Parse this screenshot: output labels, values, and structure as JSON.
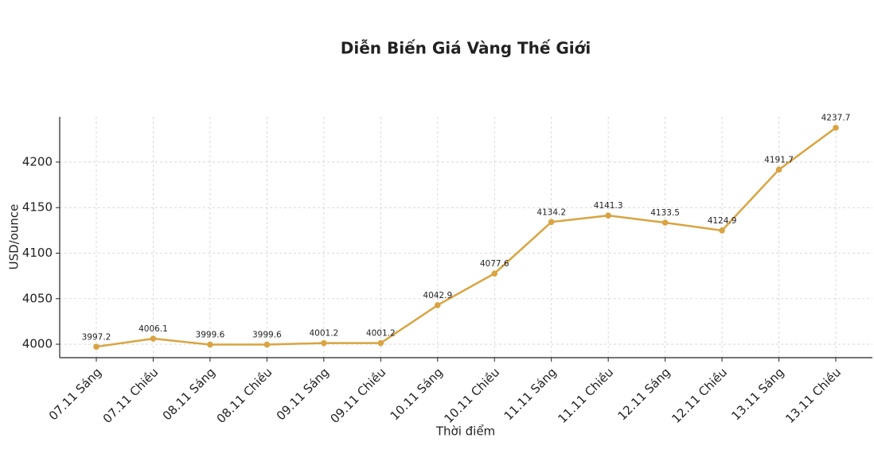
{
  "chart_data": {
    "type": "line",
    "title": "Diễn Biến Giá Vàng Thế Giới",
    "x_label": "Thời điểm",
    "y_label": "USD/ounce",
    "categories": [
      "07.11 Sáng",
      "07.11 Chiều",
      "08.11 Sáng",
      "08.11 Chiều",
      "09.11 Sáng",
      "09.11 Chiều",
      "10.11 Sáng",
      "10.11 Chiều",
      "11.11 Sáng",
      "11.11 Chiều",
      "12.11 Sáng",
      "12.11 Chiều",
      "13.11 Sáng",
      "13.11 Chiều"
    ],
    "values": [
      3997.2,
      4006.1,
      3999.6,
      3999.6,
      4001.2,
      4001.2,
      4042.9,
      4077.6,
      4134.2,
      4141.3,
      4133.5,
      4124.9,
      4191.7,
      4237.7
    ],
    "color": "#d9a441",
    "ylim": [
      3985.2,
      4249.7
    ],
    "yticks": [
      4000,
      4050,
      4100,
      4150,
      4200
    ],
    "grid": true
  }
}
